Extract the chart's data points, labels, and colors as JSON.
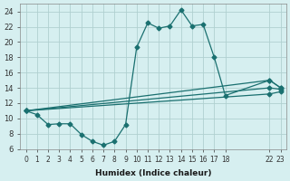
{
  "xlabel": "Humidex (Indice chaleur)",
  "bg_color": "#d6eff0",
  "grid_color": "#b0d0d0",
  "line_color": "#1a7070",
  "xlim": [
    -0.5,
    23.5
  ],
  "ylim": [
    6,
    25
  ],
  "yticks": [
    6,
    8,
    10,
    12,
    14,
    16,
    18,
    20,
    22,
    24
  ],
  "xtick_positions": [
    0,
    1,
    2,
    3,
    4,
    5,
    6,
    7,
    8,
    9,
    10,
    11,
    12,
    13,
    14,
    15,
    16,
    17,
    18,
    22,
    23
  ],
  "xtick_labels": [
    "0",
    "1",
    "2",
    "3",
    "4",
    "5",
    "6",
    "7",
    "8",
    "9",
    "10",
    "11",
    "12",
    "13",
    "14",
    "15",
    "16",
    "17",
    "18",
    "22",
    "23"
  ],
  "series": [
    {
      "x": [
        0,
        1,
        2,
        3,
        4,
        5,
        6,
        7,
        8,
        9,
        10,
        11,
        12,
        13,
        14,
        15,
        16,
        17,
        18,
        22,
        23
      ],
      "y": [
        11,
        10.5,
        9.2,
        9.3,
        9.3,
        7.9,
        7.0,
        6.5,
        7.0,
        9.2,
        19.3,
        22.5,
        21.8,
        22.1,
        24.2,
        22.1,
        22.3,
        18.0,
        13.0,
        15.0,
        14.0
      ]
    },
    {
      "x": [
        0,
        22,
        23
      ],
      "y": [
        11,
        15.0,
        14.0
      ]
    },
    {
      "x": [
        0,
        22,
        23
      ],
      "y": [
        11,
        14.0,
        13.8
      ]
    },
    {
      "x": [
        0,
        22,
        23
      ],
      "y": [
        11,
        13.2,
        13.5
      ]
    }
  ]
}
